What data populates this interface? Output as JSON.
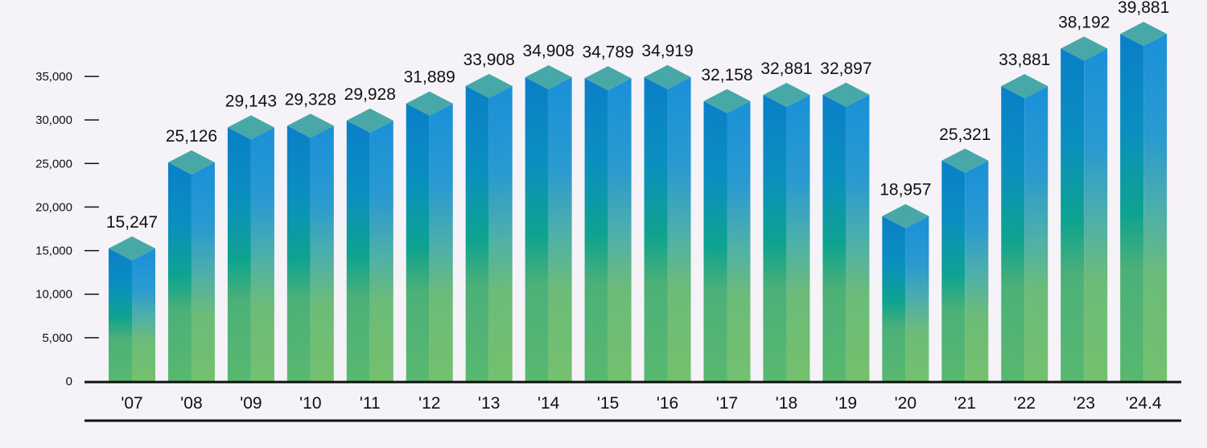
{
  "chart_data": {
    "type": "bar",
    "title": "",
    "xlabel": "",
    "ylabel": "",
    "categories": [
      "'07",
      "'08",
      "'09",
      "'10",
      "'11",
      "'12",
      "'13",
      "'14",
      "'15",
      "'16",
      "'17",
      "'18",
      "'19",
      "'20",
      "'21",
      "'22",
      "'23",
      "'24.4"
    ],
    "values": [
      15247,
      25126,
      29143,
      29328,
      29928,
      31889,
      33908,
      34908,
      34789,
      34919,
      32158,
      32881,
      32897,
      18957,
      25321,
      33881,
      38192,
      39881
    ],
    "value_labels": [
      "15,247",
      "25,126",
      "29,143",
      "29,328",
      "29,928",
      "31,889",
      "33,908",
      "34,908",
      "34,789",
      "34,919",
      "32,158",
      "32,881",
      "32,897",
      "18,957",
      "25,321",
      "33,881",
      "38,192",
      "39,881"
    ],
    "yticks": [
      0,
      5000,
      10000,
      15000,
      20000,
      25000,
      30000,
      35000
    ],
    "ytick_labels": [
      "0",
      "5,000",
      "10,000",
      "15,000",
      "20,000",
      "25,000",
      "30,000",
      "35,000"
    ],
    "grid": false,
    "legend": "none",
    "colors": {
      "bar_top": "#48a8a8",
      "bar_front_top": "#0a7fc8",
      "bar_front_mid": "#0ea38f",
      "bar_front_bottom": "#58b870",
      "bar_side_top": "#1a90d8",
      "bar_side_mid": "#4fb0a8",
      "bar_side_bottom": "#74c06e",
      "axis": "#111111",
      "background": "#f5f2f8"
    }
  }
}
